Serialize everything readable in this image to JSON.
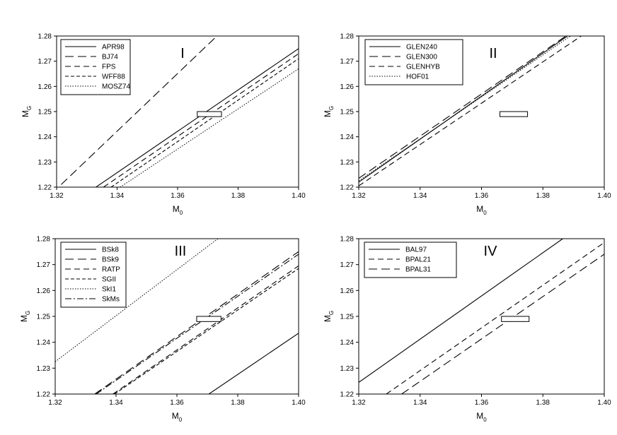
{
  "chart_data": [
    {
      "type": "line",
      "panel_label": "I",
      "xlabel": "M",
      "xlabel_sub": "0",
      "ylabel": "M",
      "ylabel_sub": "G",
      "xlim": [
        1.32,
        1.4
      ],
      "ylim": [
        1.22,
        1.28
      ],
      "xticks": [
        "1.32",
        "1.34",
        "1.36",
        "1.38",
        "1.40"
      ],
      "yticks": [
        "1.22",
        "1.23",
        "1.24",
        "1.25",
        "1.26",
        "1.27",
        "1.28"
      ],
      "legend_position": "top-left",
      "box": {
        "x": [
          1.3665,
          1.3745
        ],
        "y": [
          1.248,
          1.25
        ]
      },
      "series": [
        {
          "name": "APR98",
          "dash": "solid",
          "x": [
            1.333,
            1.4
          ],
          "y": [
            1.22,
            1.275
          ]
        },
        {
          "name": "BJ74",
          "dash": "long-dash",
          "x": [
            1.3215,
            1.373
          ],
          "y": [
            1.221,
            1.28
          ]
        },
        {
          "name": "FPS",
          "dash": "dash",
          "x": [
            1.3355,
            1.4
          ],
          "y": [
            1.22,
            1.273
          ]
        },
        {
          "name": "WFF88",
          "dash": "short-dash",
          "x": [
            1.338,
            1.4
          ],
          "y": [
            1.22,
            1.271
          ]
        },
        {
          "name": "MOSZ74",
          "dash": "dotted",
          "x": [
            1.341,
            1.4
          ],
          "y": [
            1.22,
            1.267
          ]
        }
      ]
    },
    {
      "type": "line",
      "panel_label": "II",
      "xlabel": "M",
      "xlabel_sub": "0",
      "ylabel": "M",
      "ylabel_sub": "G",
      "xlim": [
        1.32,
        1.4
      ],
      "ylim": [
        1.22,
        1.28
      ],
      "xticks": [
        "1.32",
        "1.34",
        "1.36",
        "1.38",
        "1.40"
      ],
      "yticks": [
        "1.22",
        "1.23",
        "1.24",
        "1.25",
        "1.26",
        "1.27",
        "1.28"
      ],
      "legend_position": "top-left",
      "box": {
        "x": [
          1.366,
          1.375
        ],
        "y": [
          1.248,
          1.25
        ]
      },
      "series": [
        {
          "name": "GLEN240",
          "dash": "solid",
          "x": [
            1.32,
            1.388
          ],
          "y": [
            1.222,
            1.28
          ]
        },
        {
          "name": "GLEN300",
          "dash": "long-dash",
          "x": [
            1.32,
            1.3875
          ],
          "y": [
            1.2235,
            1.28
          ]
        },
        {
          "name": "GLENHYB",
          "dash": "dash",
          "x": [
            1.32,
            1.3925
          ],
          "y": [
            1.2205,
            1.28
          ]
        },
        {
          "name": "HOF01",
          "dash": "dotted",
          "x": [
            1.32,
            1.389
          ],
          "y": [
            1.2225,
            1.28
          ]
        }
      ]
    },
    {
      "type": "line",
      "panel_label": "III",
      "xlabel": "M",
      "xlabel_sub": "0",
      "ylabel": "M",
      "ylabel_sub": "G",
      "xlim": [
        1.32,
        1.4
      ],
      "ylim": [
        1.22,
        1.28
      ],
      "xticks": [
        "1.32",
        "1.34",
        "1.36",
        "1.38",
        "1.40"
      ],
      "yticks": [
        "1.22",
        "1.23",
        "1.24",
        "1.25",
        "1.26",
        "1.27",
        "1.28"
      ],
      "legend_position": "top-left",
      "box": {
        "x": [
          1.3665,
          1.3745
        ],
        "y": [
          1.248,
          1.25
        ]
      },
      "series": [
        {
          "name": "BSk8",
          "dash": "solid",
          "x": [
            1.3705,
            1.4
          ],
          "y": [
            1.22,
            1.2435
          ]
        },
        {
          "name": "BSk9",
          "dash": "long-dash",
          "x": [
            1.333,
            1.4
          ],
          "y": [
            1.22,
            1.275
          ]
        },
        {
          "name": "RATP",
          "dash": "dash",
          "x": [
            1.339,
            1.4
          ],
          "y": [
            1.22,
            1.2695
          ]
        },
        {
          "name": "SGII",
          "dash": "short-dash",
          "x": [
            1.3395,
            1.4
          ],
          "y": [
            1.22,
            1.2685
          ]
        },
        {
          "name": "SkI1",
          "dash": "dotted",
          "x": [
            1.32,
            1.3735
          ],
          "y": [
            1.2325,
            1.28
          ]
        },
        {
          "name": "SkMs",
          "dash": "dash-dot",
          "x": [
            1.3335,
            1.4
          ],
          "y": [
            1.22,
            1.274
          ]
        }
      ]
    },
    {
      "type": "line",
      "panel_label": "IV",
      "xlabel": "M",
      "xlabel_sub": "0",
      "ylabel": "M",
      "ylabel_sub": "G",
      "xlim": [
        1.32,
        1.4
      ],
      "ylim": [
        1.22,
        1.28
      ],
      "xticks": [
        "1.32",
        "1.34",
        "1.36",
        "1.38",
        "1.40"
      ],
      "yticks": [
        "1.22",
        "1.23",
        "1.24",
        "1.25",
        "1.26",
        "1.27",
        "1.28"
      ],
      "legend_position": "top-left",
      "box": {
        "x": [
          1.3665,
          1.3755
        ],
        "y": [
          1.248,
          1.25
        ]
      },
      "series": [
        {
          "name": "BAL97",
          "dash": "solid",
          "x": [
            1.32,
            1.3865
          ],
          "y": [
            1.2245,
            1.28
          ]
        },
        {
          "name": "BPAL21",
          "dash": "dash",
          "x": [
            1.329,
            1.4
          ],
          "y": [
            1.22,
            1.2785
          ]
        },
        {
          "name": "BPAL31",
          "dash": "long-dash",
          "x": [
            1.334,
            1.4
          ],
          "y": [
            1.22,
            1.274
          ]
        }
      ]
    }
  ]
}
